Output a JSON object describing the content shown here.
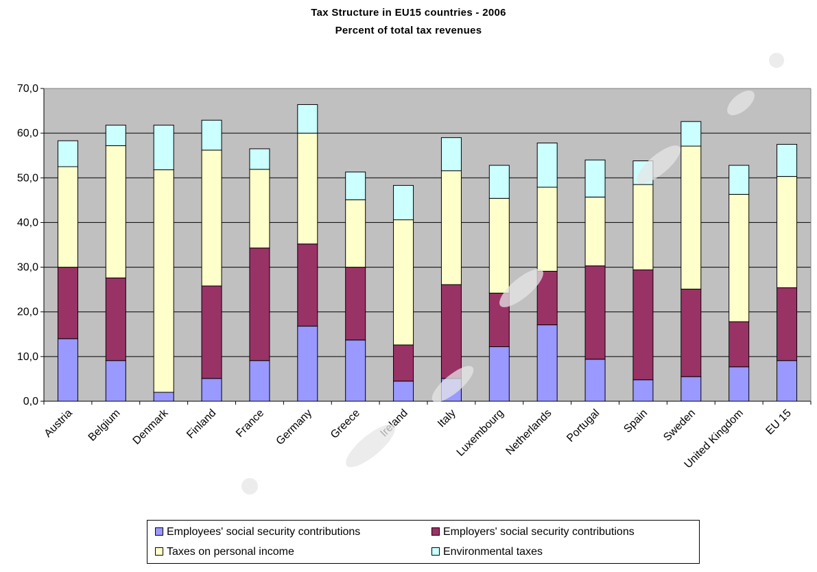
{
  "chart_data": {
    "type": "bar",
    "stacked": true,
    "title": "Tax Structure in EU15 countries - 2006",
    "subtitle": "Percent of total tax revenues",
    "categories": [
      "Austria",
      "Belgium",
      "Denmark",
      "Finland",
      "France",
      "Germany",
      "Greece",
      "Ireland",
      "Italy",
      "Luxembourg",
      "Netherlands",
      "Portugal",
      "Spain",
      "Sweden",
      "United Kingdom",
      "EU 15"
    ],
    "series": [
      {
        "name": "Employees' social security contributions",
        "color": "#9999ff",
        "values": [
          14.0,
          9.1,
          2.0,
          5.1,
          9.1,
          16.8,
          13.7,
          4.5,
          5.1,
          12.2,
          17.1,
          9.4,
          4.8,
          5.5,
          7.7,
          9.1
        ]
      },
      {
        "name": "Employers' social security contributions",
        "color": "#993366",
        "values": [
          16.0,
          18.5,
          0.0,
          20.7,
          25.2,
          18.4,
          16.3,
          8.1,
          21.0,
          12.0,
          12.0,
          20.9,
          24.6,
          19.6,
          10.1,
          16.3
        ]
      },
      {
        "name": "Taxes on personal income",
        "color": "#ffffcc",
        "values": [
          22.5,
          29.6,
          49.8,
          30.4,
          17.6,
          24.8,
          15.1,
          28.0,
          25.5,
          21.2,
          18.8,
          15.4,
          19.1,
          32.0,
          28.5,
          24.9
        ]
      },
      {
        "name": "Environmental taxes",
        "color": "#ccffff",
        "values": [
          5.8,
          4.6,
          10.0,
          6.7,
          4.6,
          6.4,
          6.2,
          7.7,
          7.4,
          7.4,
          9.9,
          8.3,
          5.3,
          5.5,
          6.5,
          7.2
        ]
      }
    ],
    "ylim": [
      0,
      70
    ],
    "yticks": [
      "0,0",
      "10,0",
      "20,0",
      "30,0",
      "40,0",
      "50,0",
      "60,0",
      "70,0"
    ],
    "grid": true,
    "plot_background": "#c0c0c0",
    "legend_position": "bottom"
  }
}
